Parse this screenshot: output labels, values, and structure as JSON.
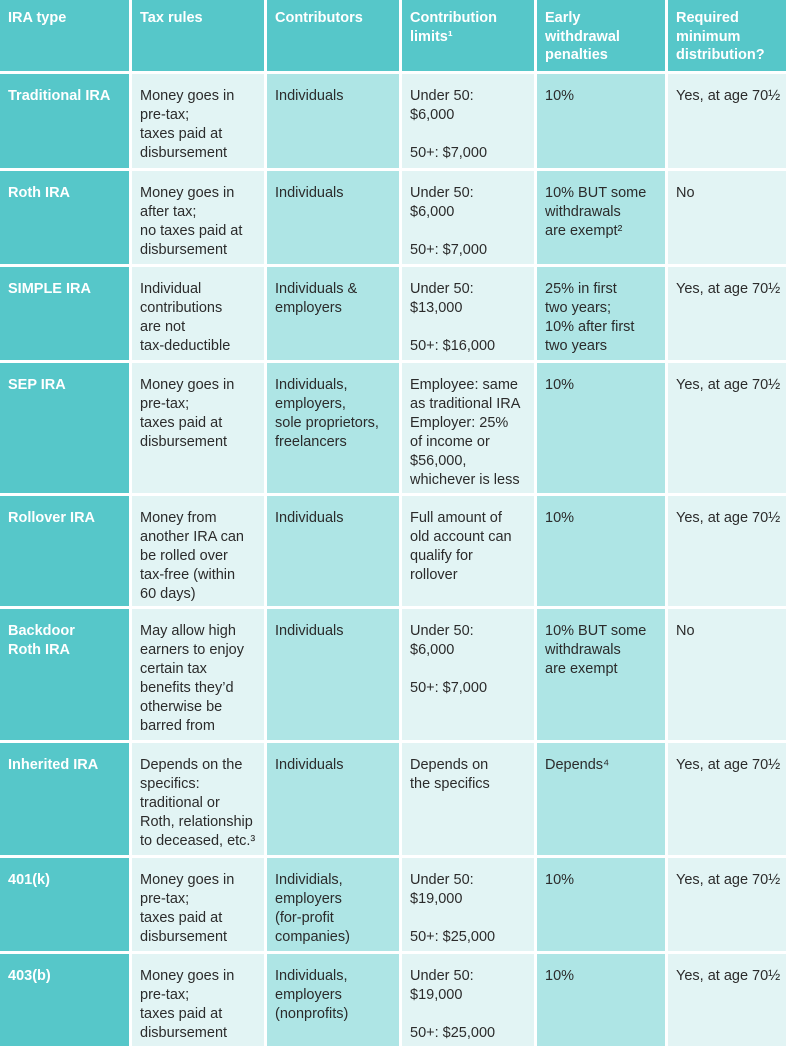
{
  "header": {
    "col0": "IRA type",
    "col1": "Tax rules",
    "col2": "Contributors",
    "col3": "Contribution\nlimits¹",
    "col4": "Early\nwithdrawal\npenalties",
    "col5": "Required\nminimum\ndistribution?"
  },
  "rows": [
    {
      "type": "Traditional IRA",
      "tax": "Money goes in\npre-tax;\ntaxes paid at\ndisbursement",
      "contributors": "Individuals",
      "limits": "Under 50:\n$6,000\n\n50+: $7,000",
      "penalties": "10%",
      "rmd": "Yes, at age 70½"
    },
    {
      "type": "Roth IRA",
      "tax": "Money goes in\nafter tax;\nno taxes paid at\ndisbursement",
      "contributors": "Individuals",
      "limits": "Under 50:\n$6,000\n\n50+: $7,000",
      "penalties": "10% BUT some\nwithdrawals\nare exempt²",
      "rmd": "No"
    },
    {
      "type": "SIMPLE IRA",
      "tax": "Individual\ncontributions\nare not\ntax-deductible",
      "contributors": "Individuals &\nemployers",
      "limits": "Under 50:\n$13,000\n\n50+: $16,000",
      "penalties": "25% in first\ntwo years;\n10% after first\ntwo years",
      "rmd": "Yes, at age 70½"
    },
    {
      "type": "SEP IRA",
      "tax": "Money goes in\npre-tax;\ntaxes paid at\ndisbursement",
      "contributors": "Individuals,\nemployers,\nsole proprietors,\nfreelancers",
      "limits": "Employee: same\nas traditional IRA\nEmployer: 25%\nof income or\n$56,000,\nwhichever is less",
      "penalties": "10%",
      "rmd": "Yes, at age 70½"
    },
    {
      "type": "Rollover IRA",
      "tax": "Money from\nanother IRA can\nbe rolled over\ntax-free (within\n60 days)",
      "contributors": "Individuals",
      "limits": "Full amount of\nold account can\nqualify for\nrollover",
      "penalties": "10%",
      "rmd": "Yes, at age 70½"
    },
    {
      "type": "Backdoor\nRoth IRA",
      "tax": "May allow high\nearners to enjoy\ncertain tax\nbenefits they’d\notherwise be\nbarred from",
      "contributors": "Individuals",
      "limits": "Under 50:\n$6,000\n\n50+: $7,000",
      "penalties": "10% BUT some\nwithdrawals\nare exempt",
      "rmd": "No"
    },
    {
      "type": "Inherited IRA",
      "tax": "Depends on the\nspecifics:\ntraditional or\nRoth, relationship\nto deceased, etc.³",
      "contributors": "Individuals",
      "limits": "Depends on\nthe specifics",
      "penalties": "Depends⁴",
      "rmd": "Yes, at age 70½"
    },
    {
      "type": "401(k)",
      "tax": "Money goes in\npre-tax;\ntaxes paid at\ndisbursement",
      "contributors": "Individials,\nemployers\n(for-profit\ncompanies)",
      "limits": "Under 50:\n$19,000\n\n50+: $25,000",
      "penalties": "10%",
      "rmd": "Yes, at age 70½"
    },
    {
      "type": "403(b)",
      "tax": "Money goes in\npre-tax;\ntaxes paid at\ndisbursement",
      "contributors": "Individuals,\nemployers\n(nonprofits)",
      "limits": "Under 50:\n$19,000\n\n50+: $25,000",
      "penalties": "10%",
      "rmd": "Yes, at age 70½"
    }
  ]
}
